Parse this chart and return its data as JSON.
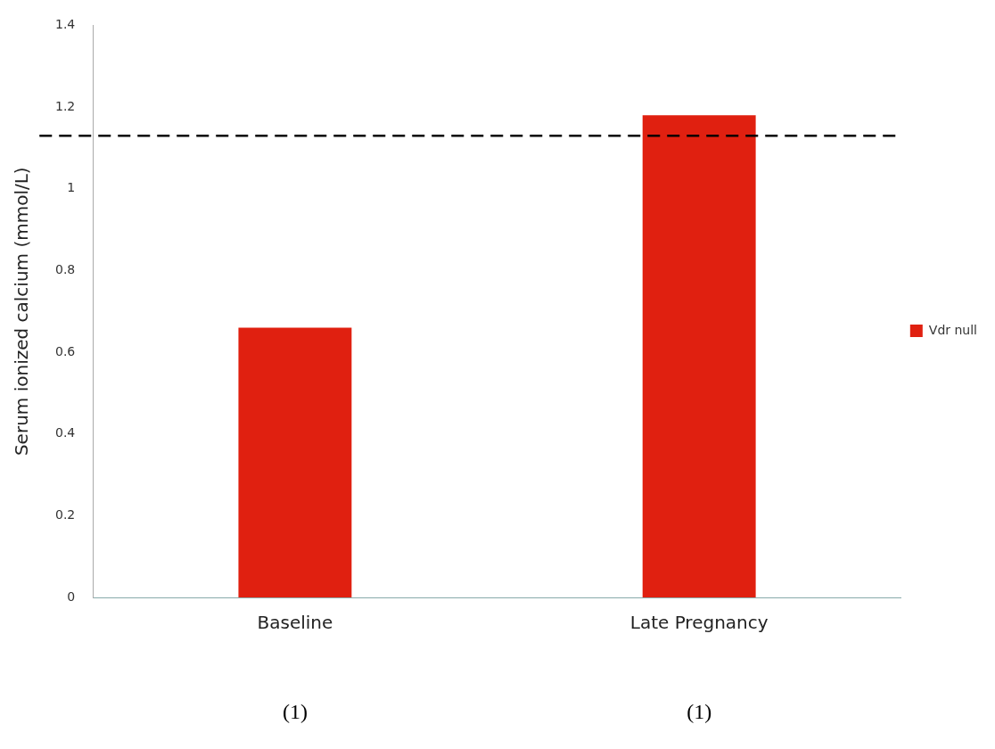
{
  "chart_data": {
    "type": "bar",
    "categories": [
      "Baseline",
      "Late Pregnancy"
    ],
    "series": [
      {
        "name": "Vdr null",
        "color": "#e02010",
        "values": [
          0.66,
          1.18
        ]
      }
    ],
    "ylabel": "Serum ionized calcium (mmol/L)",
    "ylim": [
      0,
      1.4
    ],
    "yticks": [
      0,
      0.2,
      0.4,
      0.6,
      0.8,
      1,
      1.2,
      1.4
    ],
    "grid": false,
    "legend": "right",
    "ref_lines": [
      {
        "axis": "y",
        "value": 1.13,
        "line_style": "dashed",
        "color": "#000000"
      }
    ],
    "annotations": [
      "(1)",
      "(1)"
    ]
  }
}
